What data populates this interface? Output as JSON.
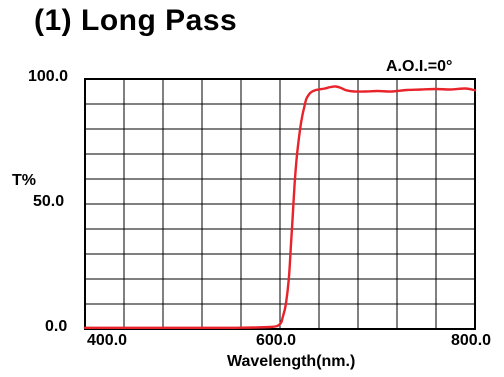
{
  "title": "(1) Long Pass",
  "annotation": "A.O.I.=0°",
  "chart_data": {
    "type": "line",
    "title": "(1) Long Pass",
    "xlabel": "Wavelength(nm.)",
    "ylabel": "T%",
    "xlim": [
      400,
      800
    ],
    "ylim": [
      0,
      100
    ],
    "grid": true,
    "x_ticks": [
      400,
      600,
      800
    ],
    "x_tick_labels": [
      "400.0",
      "600.0",
      "800.0"
    ],
    "y_ticks": [
      0,
      50,
      100
    ],
    "y_tick_labels": [
      "0.0",
      "50.0",
      "100.0"
    ],
    "annotation": "A.O.I.=0°",
    "color": "#e8232a",
    "series": [
      {
        "x": [
          400,
          450,
          500,
          550,
          590,
          600,
          603,
          606,
          609,
          611,
          613,
          615,
          617,
          619,
          621,
          623,
          625,
          627,
          630,
          633,
          636,
          640,
          646,
          652,
          657,
          662,
          668,
          676,
          688,
          700,
          715,
          730,
          745,
          760,
          775,
          790,
          800
        ],
        "y": [
          0.5,
          0.5,
          0.5,
          0.5,
          0.8,
          2,
          5,
          10,
          20,
          32,
          45,
          58,
          68,
          75,
          81,
          85.5,
          89,
          92,
          94,
          95,
          95.5,
          95.8,
          96.2,
          96.8,
          97,
          96.5,
          95.5,
          95,
          95,
          95.2,
          95,
          95.6,
          95.8,
          96,
          95.8,
          96.2,
          95.5
        ]
      }
    ]
  }
}
